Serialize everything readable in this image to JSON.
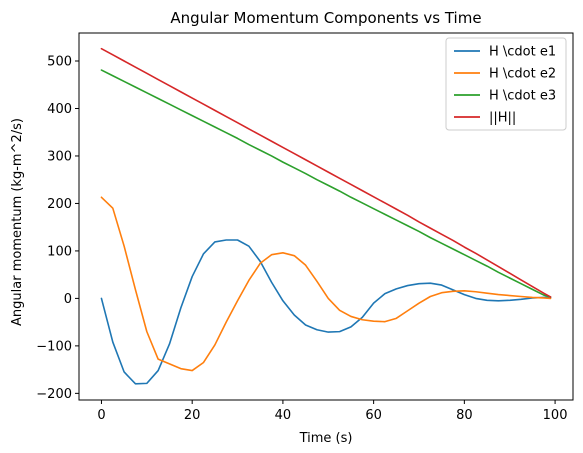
{
  "chart_data": {
    "type": "line",
    "title": "Angular Momentum Components vs Time",
    "xlabel": "Time (s)",
    "ylabel": "Angular momentum (kg-m^2/s)",
    "xlim": [
      -4.95,
      103.95
    ],
    "ylim": [
      -214,
      559
    ],
    "xticks": [
      0,
      20,
      40,
      60,
      80,
      100
    ],
    "yticks": [
      -200,
      -100,
      0,
      100,
      200,
      300,
      400,
      500
    ],
    "grid": false,
    "legend_position": "top-right",
    "x": [
      0,
      2.5,
      5,
      7.5,
      10,
      12.5,
      15,
      17.5,
      20,
      22.5,
      25,
      27.5,
      30,
      32.5,
      35,
      37.5,
      40,
      42.5,
      45,
      47.5,
      50,
      52.5,
      55,
      57.5,
      60,
      62.5,
      65,
      67.5,
      70,
      72.5,
      75,
      77.5,
      80,
      82.5,
      85,
      87.5,
      90,
      92.5,
      95,
      97.5,
      99
    ],
    "series": [
      {
        "name": "H \\cdot e1",
        "color": "#1f77b4",
        "values": [
          0,
          -92,
          -155,
          -180,
          -179,
          -152,
          -96,
          -20,
          46,
          94,
          119,
          123,
          123,
          110,
          78,
          34,
          -5,
          -35,
          -56,
          -66,
          -71,
          -70,
          -60,
          -40,
          -10,
          10,
          20,
          27,
          31,
          32,
          28,
          18,
          8,
          0,
          -4,
          -5,
          -4,
          -2,
          1,
          2,
          2
        ]
      },
      {
        "name": "H \\cdot e2",
        "color": "#ff7f0e",
        "values": [
          213,
          190,
          110,
          18,
          -70,
          -128,
          -138,
          -148,
          -152,
          -135,
          -98,
          -50,
          -5,
          38,
          74,
          92,
          96,
          90,
          70,
          36,
          0,
          -25,
          -38,
          -45,
          -48,
          -49,
          -42,
          -26,
          -10,
          4,
          12,
          15,
          16,
          14,
          11,
          8,
          6,
          4,
          2,
          1,
          0
        ]
      },
      {
        "name": "H \\cdot e3",
        "color": "#2ca02c",
        "values": [
          481,
          469,
          457,
          445,
          433,
          421,
          409,
          397,
          385,
          373,
          361,
          349,
          337,
          324,
          312,
          300,
          287,
          275,
          263,
          250,
          238,
          226,
          213,
          201,
          189,
          177,
          165,
          153,
          141,
          128,
          116,
          104,
          92,
          80,
          68,
          55,
          43,
          31,
          19,
          7,
          3
        ]
      },
      {
        "name": "||H||",
        "color": "#d62728",
        "values": [
          526,
          513,
          500,
          487,
          474,
          461,
          448,
          435,
          422,
          409,
          396,
          383,
          370,
          357,
          344,
          331,
          318,
          305,
          292,
          279,
          266,
          253,
          240,
          227,
          214,
          201,
          188,
          175,
          161,
          148,
          135,
          122,
          108,
          95,
          81,
          67,
          53,
          39,
          25,
          11,
          3
        ]
      }
    ]
  }
}
